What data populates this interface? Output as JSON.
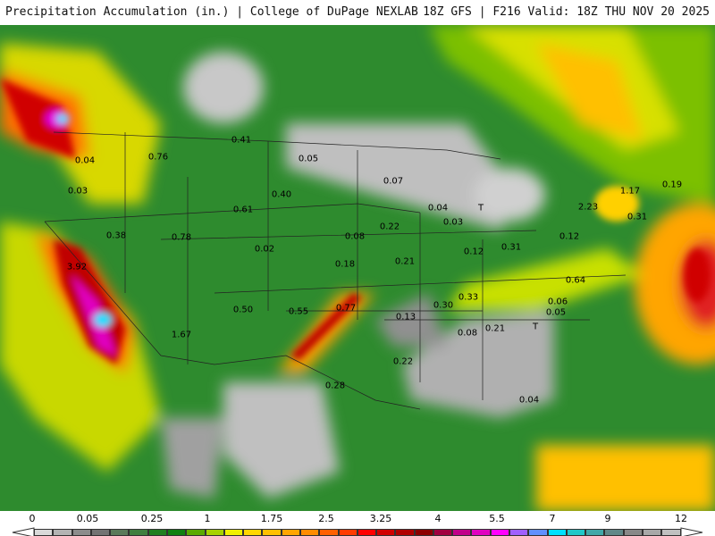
{
  "header": {
    "title": "Precipitation Accumulation (in.) | College of DuPage NEXLAB",
    "run": "18Z GFS | F216 Valid: 18Z THU NOV 20 2025"
  },
  "map": {
    "labels": [
      "0.41",
      "0.76",
      "0.04",
      "0.05",
      "0.07",
      "0.03",
      "0.40",
      "0.61",
      "0.04",
      "T",
      "2.23",
      "1.17",
      "0.19",
      "0.31",
      "0.03",
      "0.22",
      "0.38",
      "0.78",
      "0.08",
      "0.02",
      "0.12",
      "0.31",
      "0.12",
      "3.92",
      "0.18",
      "0.21",
      "0.64",
      "0.33",
      "0.06",
      "0.30",
      "0.05",
      "0.50",
      "0.55",
      "0.77",
      "0.13",
      "0.08",
      "0.21",
      "T",
      "1.67",
      "0.22",
      "0.28",
      "0.04"
    ]
  },
  "legend": {
    "ticks": [
      "0",
      "0.05",
      "0.25",
      "1",
      "1.75",
      "2.5",
      "3.25",
      "4",
      "5.5",
      "7",
      "9",
      "12"
    ],
    "colors": [
      "#d9d9d9",
      "#b3b3b3",
      "#8c8c8c",
      "#737373",
      "#5a7a5a",
      "#3f7f3f",
      "#1f7f1f",
      "#108010",
      "#5aaa00",
      "#a6d200",
      "#f0f000",
      "#ffd700",
      "#ffc000",
      "#ffa500",
      "#ff8c00",
      "#ff6000",
      "#ff3c00",
      "#ff0000",
      "#d00000",
      "#b00000",
      "#8b0000",
      "#a00040",
      "#c0008a",
      "#e000c0",
      "#ff00ff",
      "#a060ff",
      "#6090ff",
      "#00e0ff",
      "#20c8c8",
      "#40a8a8",
      "#608888",
      "#888888",
      "#a8a8a8",
      "#c0c0c0"
    ]
  }
}
